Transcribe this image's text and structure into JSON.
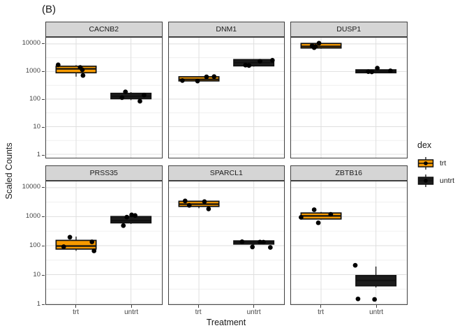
{
  "title": "(B)",
  "y_axis": {
    "label": "Scaled Counts",
    "ticks": [
      "10000",
      "1000",
      "100",
      "10",
      "1"
    ],
    "tick_values": [
      10000,
      1000,
      100,
      10,
      1
    ]
  },
  "x_axis": {
    "label": "Treatment",
    "categories": [
      "trt",
      "untrt"
    ]
  },
  "legend": {
    "title": "dex",
    "items": [
      {
        "label": "trt"
      },
      {
        "label": "untrt"
      }
    ]
  },
  "colors": {
    "trt": "#F79A00",
    "untrt": "#1C1C1C",
    "point": "#000000",
    "strip_bg": "#D5D5D5",
    "panel_border": "#404040",
    "grid_major": "#DEDEDE",
    "grid_minor": "#EFEFEF",
    "axis_text": "#444444",
    "text": "#1A1A1A"
  },
  "chart_data": {
    "type": "boxplot",
    "y_scale": "log10",
    "y_range": [
      1,
      10000
    ],
    "x_label": "Treatment",
    "y_label": "Scaled Counts",
    "group_label": "dex",
    "facets": [
      {
        "gene": "CACNB2",
        "row": 0,
        "col": 0,
        "groups": [
          {
            "dex": "trt",
            "box": {
              "lo": 650,
              "q1": 900,
              "med": 1250,
              "q3": 1550,
              "hi": 1700
            },
            "points": [
              {
                "y": 1750,
                "jx": -26
              },
              {
                "y": 1400,
                "jx": 6
              },
              {
                "y": 1150,
                "jx": 9
              },
              {
                "y": 720,
                "jx": 10
              }
            ]
          },
          {
            "dex": "untrt",
            "box": {
              "lo": 92,
              "q1": 103,
              "med": 126,
              "q3": 162,
              "hi": 178
            },
            "points": [
              {
                "y": 183,
                "jx": -8
              },
              {
                "y": 113,
                "jx": -13
              },
              {
                "y": 140,
                "jx": 19
              },
              {
                "y": 84,
                "jx": 13
              }
            ]
          }
        ]
      },
      {
        "gene": "DNM1",
        "row": 0,
        "col": 1,
        "groups": [
          {
            "dex": "trt",
            "box": {
              "lo": 430,
              "q1": 455,
              "med": 520,
              "q3": 645,
              "hi": 665
            },
            "points": [
              {
                "y": 470,
                "jx": -24
              },
              {
                "y": 450,
                "jx": -2
              },
              {
                "y": 640,
                "jx": 11
              },
              {
                "y": 655,
                "jx": 22
              }
            ]
          },
          {
            "dex": "untrt",
            "box": {
              "lo": 1500,
              "q1": 1600,
              "med": 2100,
              "q3": 2700,
              "hi": 2750
            },
            "points": [
              {
                "y": 1700,
                "jx": -12
              },
              {
                "y": 1650,
                "jx": -7
              },
              {
                "y": 2350,
                "jx": 9
              },
              {
                "y": 2550,
                "jx": 27
              }
            ]
          }
        ]
      },
      {
        "gene": "DUSP1",
        "row": 0,
        "col": 2,
        "groups": [
          {
            "dex": "trt",
            "box": {
              "lo": 6700,
              "q1": 7100,
              "med": 8100,
              "q3": 10400,
              "hi": 10600
            },
            "points": [
              {
                "y": 10600,
                "jx": -3
              },
              {
                "y": 8600,
                "jx": -13
              },
              {
                "y": 8100,
                "jx": -8
              },
              {
                "y": 7300,
                "jx": -10
              }
            ]
          },
          {
            "dex": "untrt",
            "box": {
              "lo": 860,
              "q1": 900,
              "med": 1020,
              "q3": 1150,
              "hi": 1180
            },
            "points": [
              {
                "y": 1320,
                "jx": 2
              },
              {
                "y": 990,
                "jx": -11
              },
              {
                "y": 970,
                "jx": -6
              },
              {
                "y": 1060,
                "jx": 21
              }
            ]
          }
        ]
      },
      {
        "gene": "PRSS35",
        "row": 1,
        "col": 0,
        "groups": [
          {
            "dex": "trt",
            "box": {
              "lo": 66,
              "q1": 76,
              "med": 97,
              "q3": 152,
              "hi": 205
            },
            "points": [
              {
                "y": 195,
                "jx": -9
              },
              {
                "y": 92,
                "jx": -18
              },
              {
                "y": 135,
                "jx": 23
              },
              {
                "y": 66,
                "jx": 26
              }
            ]
          },
          {
            "dex": "untrt",
            "box": {
              "lo": 560,
              "q1": 610,
              "med": 730,
              "q3": 1010,
              "hi": 1060
            },
            "points": [
              {
                "y": 1150,
                "jx": 1
              },
              {
                "y": 1100,
                "jx": 6
              },
              {
                "y": 960,
                "jx": -6
              },
              {
                "y": 490,
                "jx": -11
              }
            ]
          }
        ]
      },
      {
        "gene": "SPARCL1",
        "row": 1,
        "col": 1,
        "groups": [
          {
            "dex": "trt",
            "box": {
              "lo": 1950,
              "q1": 2250,
              "med": 2700,
              "q3": 3400,
              "hi": 3450
            },
            "points": [
              {
                "y": 3500,
                "jx": -20
              },
              {
                "y": 2450,
                "jx": -14
              },
              {
                "y": 3300,
                "jx": 8
              },
              {
                "y": 1850,
                "jx": 14
              }
            ]
          },
          {
            "dex": "untrt",
            "box": {
              "lo": 105,
              "q1": 113,
              "med": 131,
              "q3": 146,
              "hi": 150
            },
            "points": [
              {
                "y": 136,
                "jx": -17
              },
              {
                "y": 133,
                "jx": 9
              },
              {
                "y": 132,
                "jx": 14
              },
              {
                "y": 90,
                "jx": -2
              },
              {
                "y": 87,
                "jx": 24
              }
            ]
          }
        ]
      },
      {
        "gene": "ZBTB16",
        "row": 1,
        "col": 2,
        "groups": [
          {
            "dex": "trt",
            "box": {
              "lo": 790,
              "q1": 830,
              "med": 1060,
              "q3": 1340,
              "hi": 1450
            },
            "points": [
              {
                "y": 1730,
                "jx": -10
              },
              {
                "y": 1200,
                "jx": 14
              },
              {
                "y": 950,
                "jx": -29
              },
              {
                "y": 615,
                "jx": -4
              }
            ]
          },
          {
            "dex": "untrt",
            "box": {
              "lo": 3.6,
              "q1": 4.1,
              "med": 6.3,
              "q3": 9.3,
              "hi": 19
            },
            "points": [
              {
                "y": 21,
                "jx": -30
              },
              {
                "y": 1.45,
                "jx": -26
              },
              {
                "y": 1.4,
                "jx": -2
              }
            ]
          }
        ]
      }
    ]
  }
}
